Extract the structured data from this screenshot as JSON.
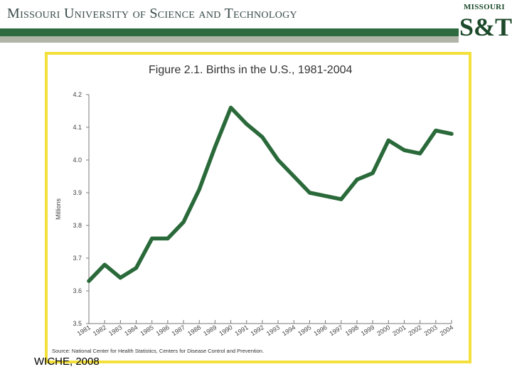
{
  "header": {
    "title": "Missouri University of Science and Technology",
    "bar_dark_color": "#2d6a3e",
    "bar_light_color": "#b0b5a8"
  },
  "logo": {
    "top_text": "MISSOURI",
    "main_text": "S&T"
  },
  "frame": {
    "border_color": "#f3e03a"
  },
  "chart_data": {
    "type": "line",
    "title": "Figure 2.1.  Births in the U.S., 1981-2004",
    "ylabel": "Millions",
    "xlabel": "",
    "ylim": [
      3.5,
      4.2
    ],
    "yticks": [
      "3.5",
      "3.6",
      "3.7",
      "3.8",
      "3.9",
      "4.0",
      "4.1",
      "4.2"
    ],
    "categories": [
      "1981",
      "1982",
      "1983",
      "1984",
      "1985",
      "1986",
      "1987",
      "1988",
      "1989",
      "1990",
      "1991",
      "1992",
      "1993",
      "1994",
      "1995",
      "1996",
      "1997",
      "1998",
      "1999",
      "2000",
      "2001",
      "2002",
      "2003",
      "2004"
    ],
    "series": [
      {
        "name": "Births",
        "color": "#2a6a3a",
        "values": [
          3.63,
          3.68,
          3.64,
          3.67,
          3.76,
          3.76,
          3.81,
          3.91,
          4.04,
          4.16,
          4.11,
          4.07,
          4.0,
          3.95,
          3.9,
          3.89,
          3.88,
          3.94,
          3.96,
          4.06,
          4.03,
          4.02,
          4.09,
          4.08
        ]
      }
    ],
    "source": "Source: National Center for Health Statistics, Centers for Disease Control and Prevention.",
    "grid": false
  },
  "footer": {
    "credit": "WICHE, 2008"
  }
}
